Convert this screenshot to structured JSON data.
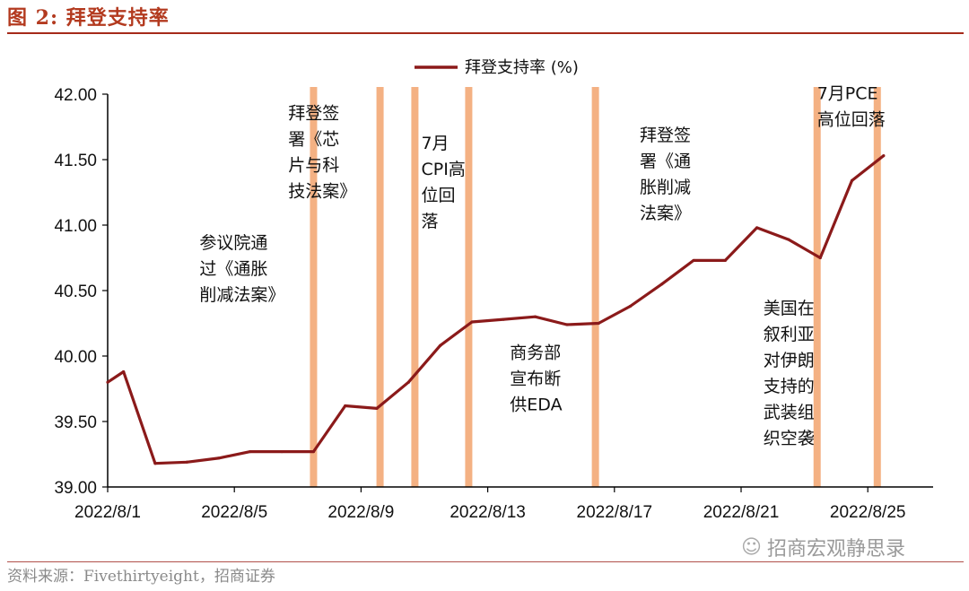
{
  "header": {
    "title": "图 2:  拜登支持率"
  },
  "footer": {
    "source": "资料来源：Fivethirtyeight，招商证券"
  },
  "watermark": {
    "text": "招商宏观静思录",
    "icon": "wechat-icon"
  },
  "colors": {
    "line": "#8b1a1a",
    "event_bar": "#f4b183",
    "title": "#b33a1f"
  },
  "chart_data": {
    "type": "line",
    "series": [
      {
        "name": "拜登支持率 (%)",
        "x": [
          "2022/8/1",
          "2022/8/1.5",
          "2022/8/2",
          "2022/8/3",
          "2022/8/4",
          "2022/8/5",
          "2022/8/6",
          "2022/8/7",
          "2022/8/8",
          "2022/8/9",
          "2022/8/10",
          "2022/8/11",
          "2022/8/12",
          "2022/8/13",
          "2022/8/14",
          "2022/8/15",
          "2022/8/16",
          "2022/8/17",
          "2022/8/18",
          "2022/8/19",
          "2022/8/20",
          "2022/8/21",
          "2022/8/22",
          "2022/8/23",
          "2022/8/24",
          "2022/8/25"
        ],
        "xi": [
          0,
          0.5,
          1.5,
          2.5,
          3.5,
          4.5,
          5.5,
          6.5,
          7.5,
          8.5,
          9.5,
          10.5,
          11.5,
          12.5,
          13.5,
          14.5,
          15.5,
          16.5,
          17.5,
          18.5,
          19.5,
          20.5,
          21.5,
          22.5,
          23.5,
          24.5
        ],
        "values": [
          39.8,
          39.88,
          39.18,
          39.19,
          39.22,
          39.27,
          39.27,
          39.27,
          39.62,
          39.6,
          39.8,
          40.08,
          40.26,
          40.28,
          40.3,
          40.24,
          40.25,
          40.38,
          40.55,
          40.73,
          40.73,
          40.98,
          40.89,
          40.75,
          41.34,
          41.53
        ]
      }
    ],
    "x_ticks": [
      {
        "i": 0,
        "label": "2022/8/1"
      },
      {
        "i": 4,
        "label": "2022/8/5"
      },
      {
        "i": 8,
        "label": "2022/8/9"
      },
      {
        "i": 12,
        "label": "2022/8/13"
      },
      {
        "i": 16,
        "label": "2022/8/17"
      },
      {
        "i": 20,
        "label": "2022/8/21"
      },
      {
        "i": 24,
        "label": "2022/8/25"
      }
    ],
    "y_ticks": [
      "39.00",
      "39.50",
      "40.00",
      "40.50",
      "41.00",
      "41.50",
      "42.00"
    ],
    "ylim": [
      39.0,
      42.0
    ],
    "event_bars": [
      6.5,
      8.6,
      9.7,
      11.4,
      15.4,
      22.4,
      24.3
    ],
    "annotations": [
      {
        "lines": [
          "参议院通",
          "过《通胀",
          "削减法案》"
        ],
        "xi": 2.9,
        "yv": 40.96
      },
      {
        "lines": [
          "拜登签",
          "署《芯",
          "片与科",
          "技法案》"
        ],
        "xi": 5.7,
        "yv": 41.95
      },
      {
        "lines": [
          "7月",
          "CPI高",
          "位回",
          "落"
        ],
        "xi": 9.9,
        "yv": 41.72
      },
      {
        "lines": [
          "商务部",
          "宣布断",
          "供EDA"
        ],
        "xi": 12.7,
        "yv": 40.12
      },
      {
        "lines": [
          "拜登签",
          "署《通",
          "胀削减",
          "法案》"
        ],
        "xi": 16.8,
        "yv": 41.78
      },
      {
        "lines": [
          "美国在",
          "叙利亚",
          "对伊朗",
          "支持的",
          "武装组",
          "织空袭"
        ],
        "xi": 20.7,
        "yv": 40.46
      },
      {
        "lines": [
          "7月PCE",
          "高位回落"
        ],
        "xi": 22.4,
        "yv": 42.1
      }
    ]
  }
}
